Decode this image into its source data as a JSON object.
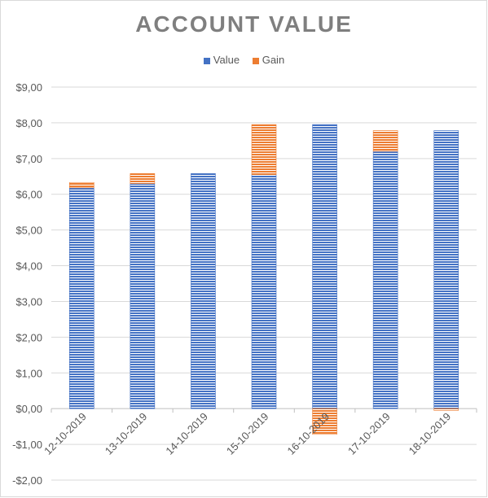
{
  "chart_data": {
    "type": "bar",
    "stacked": true,
    "title": "ACCOUNT VALUE",
    "xlabel": "",
    "ylabel": "",
    "categories": [
      "12-10-2019",
      "13-10-2019",
      "14-10-2019",
      "15-10-2019",
      "16-10-2019",
      "17-10-2019",
      "18-10-2019"
    ],
    "series": [
      {
        "name": "Value",
        "color": "#4472c4",
        "values": [
          6.18,
          6.3,
          6.58,
          6.55,
          7.95,
          7.2,
          7.78
        ]
      },
      {
        "name": "Gain",
        "color": "#ed7d31",
        "values": [
          0.15,
          0.28,
          0.0,
          1.4,
          -0.72,
          0.58,
          -0.05
        ]
      }
    ],
    "ylim": [
      -2,
      9
    ],
    "yticks": [
      -2,
      -1,
      0,
      1,
      2,
      3,
      4,
      5,
      6,
      7,
      8,
      9
    ],
    "ytick_labels": [
      "-$2,00",
      "-$1,00",
      "$0,00",
      "$1,00",
      "$2,00",
      "$3,00",
      "$4,00",
      "$5,00",
      "$6,00",
      "$7,00",
      "$8,00",
      "$9,00"
    ],
    "grid": true,
    "legend_position": "top-center"
  }
}
